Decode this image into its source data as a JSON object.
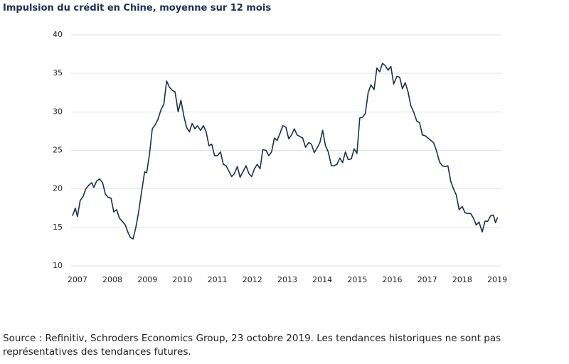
{
  "chart_data": {
    "type": "line",
    "title": "Impulsion du crédit en Chine, moyenne sur 12 mois",
    "source": "Source : Refinitiv, Schroders Economics Group, 23 octobre 2019. Les tendances historiques ne sont pas représentatives des tendances futures.",
    "color": "#1f2d4e",
    "grid": true,
    "xlim": [
      2006.82,
      2019.12
    ],
    "ylim": [
      10,
      40
    ],
    "yticks": [
      10,
      15,
      20,
      25,
      30,
      35,
      40
    ],
    "xticks": [
      2007,
      2008,
      2009,
      2010,
      2011,
      2012,
      2013,
      2014,
      2015,
      2016,
      2017,
      2018,
      2019
    ],
    "x": [
      2006.86,
      2006.94,
      2007.0,
      2007.08,
      2007.16,
      2007.24,
      2007.33,
      2007.41,
      2007.47,
      2007.55,
      2007.63,
      2007.72,
      2007.8,
      2007.88,
      2007.96,
      2008.04,
      2008.12,
      2008.2,
      2008.28,
      2008.37,
      2008.45,
      2008.51,
      2008.59,
      2008.67,
      2008.75,
      2008.83,
      2008.92,
      2008.98,
      2009.06,
      2009.14,
      2009.22,
      2009.3,
      2009.39,
      2009.47,
      2009.55,
      2009.63,
      2009.71,
      2009.79,
      2009.88,
      2009.96,
      2010.04,
      2010.12,
      2010.2,
      2010.28,
      2010.36,
      2010.43,
      2010.52,
      2010.6,
      2010.68,
      2010.76,
      2010.84,
      2010.92,
      2011.0,
      2011.09,
      2011.17,
      2011.25,
      2011.33,
      2011.41,
      2011.49,
      2011.57,
      2011.65,
      2011.74,
      2011.82,
      2011.9,
      2011.98,
      2012.06,
      2012.14,
      2012.22,
      2012.3,
      2012.39,
      2012.47,
      2012.55,
      2012.63,
      2012.71,
      2012.79,
      2012.87,
      2012.96,
      2013.04,
      2013.12,
      2013.2,
      2013.28,
      2013.36,
      2013.44,
      2013.52,
      2013.61,
      2013.69,
      2013.77,
      2013.85,
      2013.93,
      2014.01,
      2014.09,
      2014.17,
      2014.26,
      2014.34,
      2014.42,
      2014.5,
      2014.58,
      2014.66,
      2014.74,
      2014.83,
      2014.91,
      2014.99,
      2015.07,
      2015.15,
      2015.23,
      2015.31,
      2015.39,
      2015.48,
      2015.56,
      2015.64,
      2015.72,
      2015.8,
      2015.88,
      2015.96,
      2016.04,
      2016.13,
      2016.21,
      2016.29,
      2016.37,
      2016.45,
      2016.53,
      2016.61,
      2016.7,
      2016.78,
      2016.86,
      2016.94,
      2017.02,
      2017.1,
      2017.18,
      2017.26,
      2017.35,
      2017.43,
      2017.51,
      2017.59,
      2017.67,
      2017.75,
      2017.83,
      2017.91,
      2018.0,
      2018.08,
      2018.16,
      2018.24,
      2018.32,
      2018.4,
      2018.48,
      2018.57,
      2018.65,
      2018.73,
      2018.81,
      2018.89,
      2018.95,
      2019.01
    ],
    "values": [
      16.5,
      17.5,
      16.4,
      18.5,
      19.0,
      20.0,
      20.5,
      20.8,
      20.2,
      21.0,
      21.3,
      20.8,
      19.3,
      18.9,
      18.8,
      17.0,
      17.3,
      16.2,
      15.8,
      15.3,
      14.3,
      13.7,
      13.5,
      15.0,
      17.0,
      19.5,
      22.2,
      22.1,
      24.5,
      27.8,
      28.3,
      29.0,
      30.3,
      31.0,
      34.0,
      33.2,
      32.8,
      32.6,
      30.0,
      31.5,
      29.5,
      28.0,
      27.4,
      28.5,
      27.8,
      28.2,
      27.6,
      28.2,
      27.4,
      25.6,
      25.8,
      24.3,
      24.3,
      24.8,
      23.2,
      23.0,
      22.3,
      21.6,
      22.0,
      22.9,
      21.5,
      22.3,
      23.0,
      22.0,
      21.6,
      22.6,
      23.2,
      22.6,
      25.1,
      25.0,
      24.3,
      24.8,
      26.6,
      26.3,
      27.2,
      28.2,
      28.0,
      26.5,
      27.0,
      27.8,
      27.0,
      26.8,
      26.6,
      25.4,
      26.0,
      25.8,
      24.7,
      25.3,
      26.0,
      27.6,
      25.6,
      24.8,
      23.0,
      23.0,
      23.2,
      24.0,
      23.4,
      24.8,
      23.8,
      23.9,
      25.2,
      24.6,
      29.2,
      29.3,
      29.8,
      32.5,
      33.5,
      32.9,
      35.7,
      35.2,
      36.3,
      36.0,
      35.4,
      35.9,
      33.6,
      34.6,
      34.5,
      33.0,
      33.8,
      32.6,
      30.8,
      30.0,
      28.8,
      28.6,
      27.0,
      26.9,
      26.6,
      26.3,
      26.0,
      25.0,
      23.5,
      23.0,
      22.9,
      23.0,
      21.0,
      20.0,
      19.2,
      17.3,
      17.7,
      16.9,
      16.8,
      16.8,
      16.2,
      15.3,
      15.7,
      14.4,
      15.8,
      15.8,
      16.5,
      16.6,
      15.6,
      16.3
    ]
  }
}
